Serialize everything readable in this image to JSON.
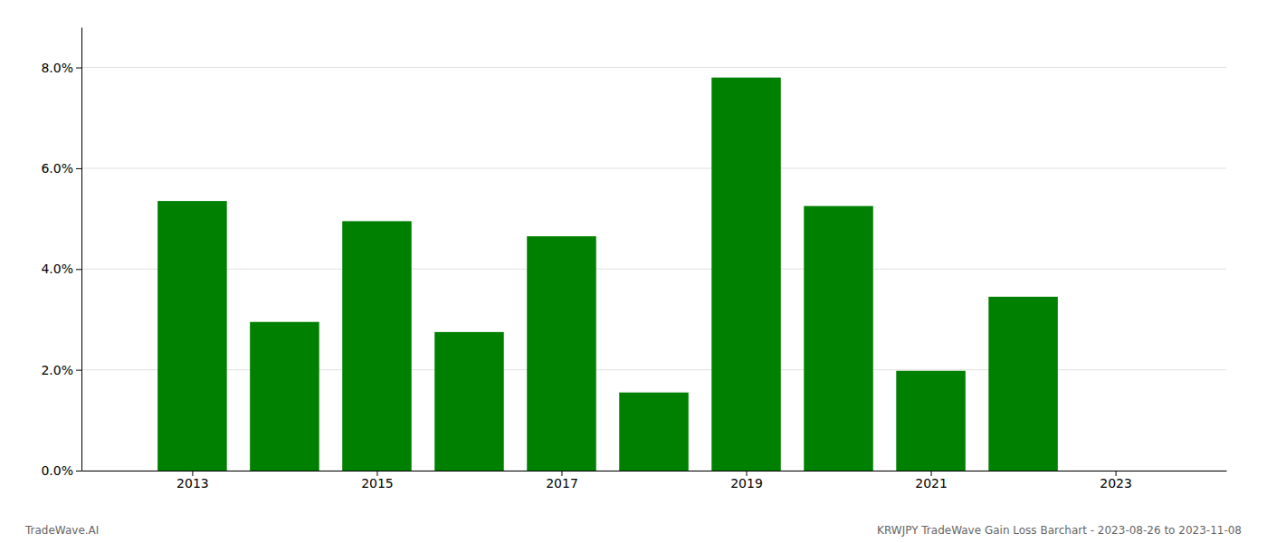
{
  "chart_data": {
    "type": "bar",
    "x": [
      2013,
      2014,
      2015,
      2016,
      2017,
      2018,
      2019,
      2020,
      2021,
      2022
    ],
    "values": [
      0.0535,
      0.0295,
      0.0495,
      0.0275,
      0.0465,
      0.0155,
      0.078,
      0.0525,
      0.0198,
      0.0345
    ],
    "color": "#008000",
    "xlim": [
      2011.8,
      2024.2
    ],
    "xticks": [
      2013,
      2015,
      2017,
      2019,
      2021,
      2023
    ],
    "ylim": [
      0,
      0.088
    ],
    "yticks": [
      {
        "value": 0.0,
        "label": "0.0%"
      },
      {
        "value": 0.02,
        "label": "2.0%"
      },
      {
        "value": 0.04,
        "label": "4.0%"
      },
      {
        "value": 0.06,
        "label": "6.0%"
      },
      {
        "value": 0.08,
        "label": "8.0%"
      }
    ],
    "grid": true,
    "annotations": [
      "TradeWave.AI",
      "KRWJPY TradeWave Gain Loss Barchart - 2023-08-26 to 2023-11-08"
    ]
  }
}
